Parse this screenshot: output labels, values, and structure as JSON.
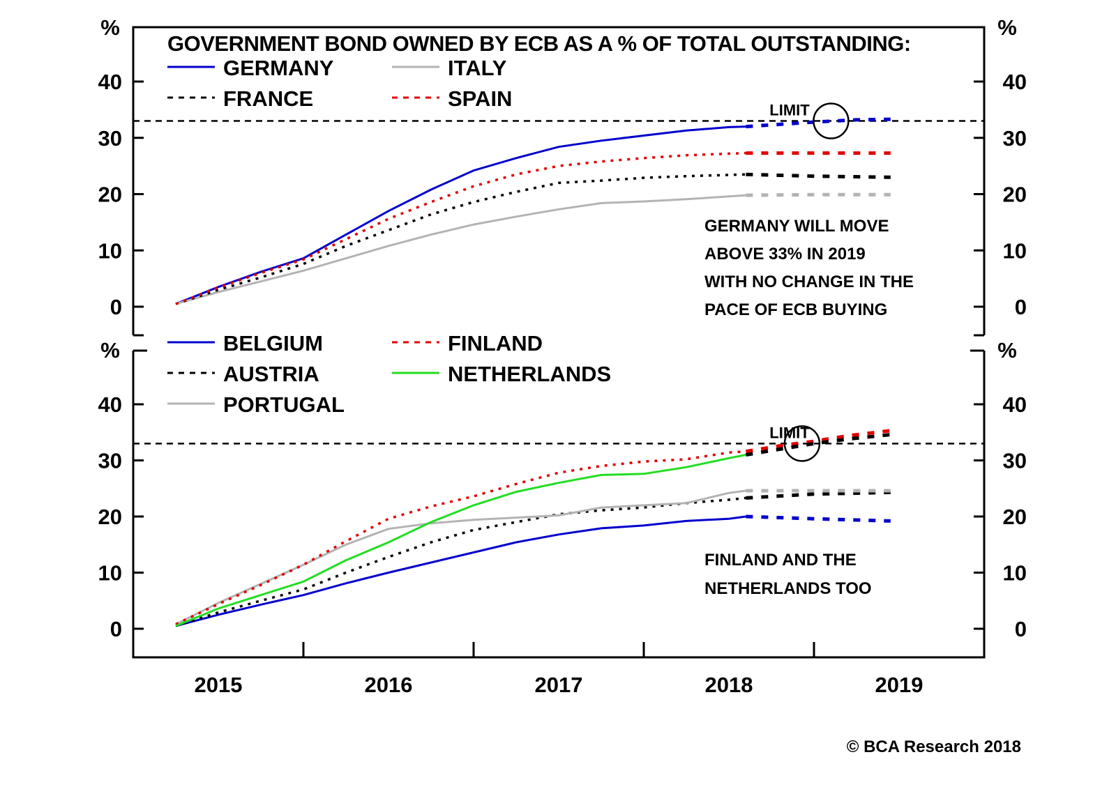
{
  "chart_data": {
    "type": "line",
    "title": "GOVERNMENT BOND OWNED BY ECB AS A % OF TOTAL OUTSTANDING:",
    "copyright": "© BCA Research 2018",
    "x_unit": "year",
    "xlim": [
      2015.0,
      2020.0
    ],
    "x_tick_labels": [
      "2015",
      "2016",
      "2017",
      "2018",
      "2019"
    ],
    "x_tick_marks": [
      2016,
      2017,
      2018,
      2019
    ],
    "projection_start": 2018.6,
    "panels": [
      {
        "id": "top",
        "y_unit_label": "%",
        "ylim": [
          -3,
          49
        ],
        "yticks": [
          0,
          10,
          20,
          30,
          40
        ],
        "limit": {
          "value": 33,
          "label": "LIMIT",
          "circle_at": [
            2019.1,
            33
          ]
        },
        "annotation": [
          "GERMANY WILL MOVE",
          "ABOVE 33% IN 2019",
          "WITH NO CHANGE IN THE",
          "PACE OF ECB BUYING"
        ],
        "legend_placement": "top-left",
        "series": [
          {
            "name": "GERMANY",
            "color": "#0000cc",
            "style": "solid",
            "x": [
              2015.25,
              2015.5,
              2015.75,
              2016.0,
              2016.25,
              2016.5,
              2016.75,
              2017.0,
              2017.25,
              2017.5,
              2017.75,
              2018.0,
              2018.25,
              2018.5,
              2018.6
            ],
            "y": [
              0.5,
              3.5,
              6.2,
              8.6,
              12.8,
              17.0,
              20.8,
              24.2,
              26.4,
              28.4,
              29.5,
              30.4,
              31.3,
              31.9,
              32.0
            ],
            "projection": {
              "x": [
                2018.6,
                2018.8,
                2019.0,
                2019.25,
                2019.45
              ],
              "y": [
                32.0,
                32.4,
                32.8,
                33.2,
                33.3
              ]
            }
          },
          {
            "name": "ITALY",
            "color": "#b3b3b3",
            "style": "solid",
            "x": [
              2015.25,
              2015.5,
              2015.75,
              2016.0,
              2016.25,
              2016.5,
              2016.75,
              2017.0,
              2017.25,
              2017.5,
              2017.75,
              2018.0,
              2018.25,
              2018.5,
              2018.6
            ],
            "y": [
              0.5,
              2.6,
              4.5,
              6.4,
              8.6,
              10.8,
              12.8,
              14.6,
              16.0,
              17.3,
              18.4,
              18.7,
              19.1,
              19.6,
              19.8
            ],
            "projection": {
              "x": [
                2018.6,
                2019.0,
                2019.45
              ],
              "y": [
                19.8,
                19.9,
                19.9
              ]
            }
          },
          {
            "name": "FRANCE",
            "color": "#000000",
            "style": "dashed",
            "x": [
              2015.25,
              2015.5,
              2015.75,
              2016.0,
              2016.25,
              2016.5,
              2016.75,
              2017.0,
              2017.25,
              2017.5,
              2017.75,
              2018.0,
              2018.25,
              2018.5,
              2018.6
            ],
            "y": [
              0.5,
              3.0,
              5.2,
              7.6,
              10.8,
              13.6,
              16.4,
              18.6,
              20.4,
              22.0,
              22.4,
              22.9,
              23.2,
              23.4,
              23.5
            ],
            "projection": {
              "x": [
                2018.6,
                2019.0,
                2019.45
              ],
              "y": [
                23.5,
                23.2,
                23.0
              ]
            }
          },
          {
            "name": "SPAIN",
            "color": "#e00000",
            "style": "dashed",
            "x": [
              2015.25,
              2015.5,
              2015.75,
              2016.0,
              2016.25,
              2016.5,
              2016.75,
              2017.0,
              2017.25,
              2017.5,
              2017.75,
              2018.0,
              2018.25,
              2018.5,
              2018.6
            ],
            "y": [
              0.5,
              3.4,
              6.0,
              8.4,
              12.0,
              15.6,
              18.6,
              21.4,
              23.5,
              25.0,
              25.8,
              26.4,
              26.9,
              27.2,
              27.3
            ],
            "projection": {
              "x": [
                2018.6,
                2019.0,
                2019.45
              ],
              "y": [
                27.3,
                27.3,
                27.3
              ]
            }
          }
        ]
      },
      {
        "id": "bottom",
        "y_unit_label": "%",
        "ylim": [
          -5,
          48
        ],
        "yticks": [
          0,
          10,
          20,
          30,
          40
        ],
        "limit": {
          "value": 33,
          "label": "LIMIT",
          "circle_at": [
            2018.93,
            33
          ]
        },
        "annotation": [
          "FINLAND AND THE",
          "NETHERLANDS TOO"
        ],
        "legend_placement": "top-left",
        "series": [
          {
            "name": "BELGIUM",
            "color": "#0000cc",
            "style": "solid",
            "x": [
              2015.25,
              2015.5,
              2015.75,
              2016.0,
              2016.25,
              2016.5,
              2016.75,
              2017.0,
              2017.25,
              2017.5,
              2017.75,
              2018.0,
              2018.25,
              2018.5,
              2018.6
            ],
            "y": [
              0.5,
              2.5,
              4.3,
              6.0,
              8.1,
              10.0,
              11.8,
              13.6,
              15.4,
              16.8,
              17.9,
              18.4,
              19.2,
              19.6,
              20.0
            ],
            "projection": {
              "x": [
                2018.6,
                2019.0,
                2019.45
              ],
              "y": [
                20.0,
                19.6,
                19.2
              ]
            }
          },
          {
            "name": "AUSTRIA",
            "color": "#000000",
            "style": "dashed",
            "x": [
              2015.25,
              2015.5,
              2015.75,
              2016.0,
              2016.25,
              2016.5,
              2016.75,
              2017.0,
              2017.25,
              2017.5,
              2017.75,
              2018.0,
              2018.25,
              2018.5,
              2018.6
            ],
            "y": [
              0.5,
              2.9,
              5.0,
              7.0,
              10.0,
              12.8,
              15.4,
              17.6,
              19.0,
              20.4,
              21.1,
              21.6,
              22.4,
              23.0,
              23.3
            ],
            "projection": {
              "x": [
                2018.6,
                2019.0,
                2019.45
              ],
              "y": [
                23.3,
                24.0,
                24.3
              ]
            }
          },
          {
            "name": "PORTUGAL",
            "color": "#b3b3b3",
            "style": "solid",
            "x": [
              2015.25,
              2015.5,
              2015.75,
              2016.0,
              2016.25,
              2016.5,
              2016.75,
              2017.0,
              2017.25,
              2017.5,
              2017.75,
              2018.0,
              2018.25,
              2018.5,
              2018.6
            ],
            "y": [
              0.8,
              4.6,
              8.0,
              11.4,
              15.0,
              17.8,
              18.8,
              19.4,
              19.8,
              20.2,
              21.6,
              22.0,
              22.4,
              24.2,
              24.6
            ],
            "projection": {
              "x": [
                2018.6,
                2019.0,
                2019.45
              ],
              "y": [
                24.6,
                24.6,
                24.6
              ]
            }
          },
          {
            "name": "FINLAND",
            "color": "#e00000",
            "style": "dashed",
            "x": [
              2015.25,
              2015.5,
              2015.75,
              2016.0,
              2016.25,
              2016.5,
              2016.75,
              2017.0,
              2017.25,
              2017.5,
              2017.75,
              2018.0,
              2018.25,
              2018.5,
              2018.6
            ],
            "y": [
              0.8,
              4.4,
              7.8,
              11.4,
              15.6,
              19.6,
              21.8,
              23.6,
              25.8,
              27.8,
              29.0,
              29.8,
              30.2,
              31.4,
              31.6
            ],
            "projection": {
              "x": [
                2018.6,
                2018.8,
                2019.0,
                2019.2,
                2019.45
              ],
              "y": [
                31.6,
                32.6,
                33.4,
                34.4,
                35.3
              ]
            }
          },
          {
            "name": "NETHERLANDS",
            "color": "#22dd22",
            "style": "solid",
            "x": [
              2015.25,
              2015.5,
              2015.75,
              2016.0,
              2016.25,
              2016.5,
              2016.75,
              2017.0,
              2017.25,
              2017.5,
              2017.75,
              2018.0,
              2018.25,
              2018.5,
              2018.6
            ],
            "y": [
              0.5,
              3.6,
              6.0,
              8.4,
              12.2,
              15.4,
              19.0,
              22.0,
              24.4,
              26.0,
              27.4,
              27.6,
              28.8,
              30.4,
              31.0
            ],
            "projection": {
              "x": [
                2018.6,
                2018.8,
                2019.0,
                2019.2,
                2019.45
              ],
              "y": [
                31.0,
                32.0,
                33.0,
                33.8,
                34.6
              ],
              "color": "#000000"
            }
          }
        ]
      }
    ]
  }
}
